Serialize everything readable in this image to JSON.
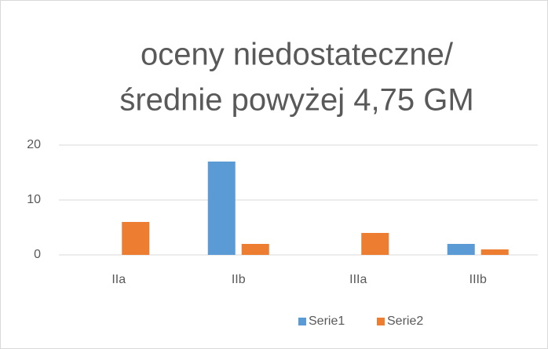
{
  "chart_data": {
    "type": "bar",
    "title": [
      "oceny niedostateczne/",
      "średnie powyżej 4,75 GM"
    ],
    "categories": [
      "IIa",
      "IIb",
      "IIIa",
      "IIIb"
    ],
    "series": [
      {
        "name": "Serie1",
        "color": "#5b9bd5",
        "values": [
          0,
          17,
          0,
          2
        ]
      },
      {
        "name": "Serie2",
        "color": "#ed7d31",
        "values": [
          6,
          2,
          4,
          1
        ]
      }
    ],
    "ylim": [
      0,
      20
    ],
    "yticks": [
      0,
      10,
      20
    ],
    "grid": true,
    "legend": "bottom"
  }
}
